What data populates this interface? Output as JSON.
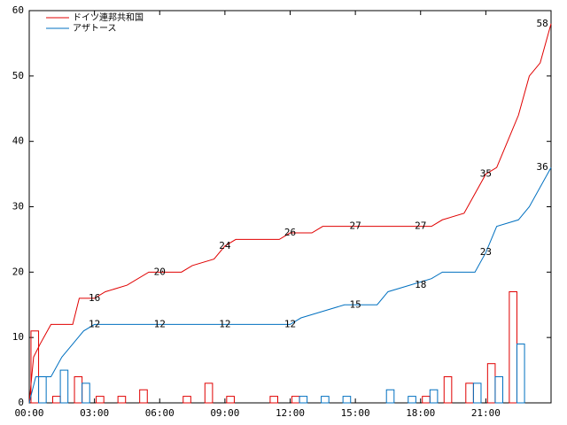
{
  "chart_data": [
    {
      "type": "line",
      "xlim": [
        0,
        24
      ],
      "ylim": [
        0,
        60
      ],
      "yticks": [
        0,
        10,
        20,
        30,
        40,
        50,
        60
      ],
      "xticks": [
        {
          "value": 0,
          "label": "00:00"
        },
        {
          "value": 3,
          "label": "03:00"
        },
        {
          "value": 6,
          "label": "06:00"
        },
        {
          "value": 9,
          "label": "09:00"
        },
        {
          "value": 12,
          "label": "12:00"
        },
        {
          "value": 15,
          "label": "15:00"
        },
        {
          "value": 18,
          "label": "18:00"
        },
        {
          "value": 21,
          "label": "21:00"
        }
      ],
      "series": [
        {
          "name": "ドイツ連邦共和国",
          "color": "#e00000",
          "x": [
            0,
            0.2,
            0.5,
            1,
            2,
            2.3,
            3,
            3.5,
            4.5,
            5.5,
            7,
            7.5,
            8.5,
            9,
            9.5,
            11.5,
            12,
            13,
            13.5,
            18.5,
            19,
            20,
            20.5,
            21,
            21.5,
            22,
            22.5,
            23,
            23.5,
            24
          ],
          "values": [
            0,
            7,
            9,
            12,
            12,
            16,
            16,
            17,
            18,
            20,
            20,
            21,
            22,
            24,
            25,
            25,
            26,
            26,
            27,
            27,
            28,
            29,
            32,
            35,
            36,
            40,
            44,
            50,
            52,
            58
          ],
          "annotations": [
            {
              "x": 3,
              "y": 16
            },
            {
              "x": 6,
              "y": 20
            },
            {
              "x": 9,
              "y": 24
            },
            {
              "x": 12,
              "y": 26
            },
            {
              "x": 15,
              "y": 27
            },
            {
              "x": 18,
              "y": 27
            },
            {
              "x": 21,
              "y": 35
            },
            {
              "x": 23.6,
              "y": 58
            }
          ]
        },
        {
          "name": "アザトース",
          "color": "#0070c0",
          "x": [
            0,
            0.3,
            1,
            1.5,
            2,
            2.5,
            3,
            12,
            12.5,
            13.5,
            14.5,
            16,
            16.5,
            17.5,
            18.5,
            19,
            20.5,
            21,
            21.5,
            22.5,
            23,
            24
          ],
          "values": [
            0,
            4,
            4,
            7,
            9,
            11,
            12,
            12,
            13,
            14,
            15,
            15,
            17,
            18,
            19,
            20,
            20,
            23,
            27,
            28,
            30,
            36
          ],
          "annotations": [
            {
              "x": 3,
              "y": 12
            },
            {
              "x": 6,
              "y": 12
            },
            {
              "x": 9,
              "y": 12
            },
            {
              "x": 12,
              "y": 12
            },
            {
              "x": 15,
              "y": 15
            },
            {
              "x": 18,
              "y": 18
            },
            {
              "x": 21,
              "y": 23
            },
            {
              "x": 23.6,
              "y": 36
            }
          ]
        }
      ]
    },
    {
      "type": "bar",
      "x": [
        0,
        1,
        2,
        3,
        4,
        5,
        6,
        7,
        8,
        9,
        10,
        11,
        12,
        13,
        14,
        15,
        16,
        17,
        18,
        19,
        20,
        21,
        22
      ],
      "series": [
        {
          "color": "#e00000",
          "values": [
            11,
            1,
            4,
            1,
            1,
            2,
            0,
            1,
            3,
            1,
            0,
            1,
            1,
            0,
            0,
            0,
            0,
            0,
            1,
            4,
            3,
            6,
            17
          ]
        },
        {
          "color": "#0070c0",
          "values": [
            4,
            5,
            3,
            0,
            0,
            0,
            0,
            0,
            0,
            0,
            0,
            0,
            1,
            1,
            1,
            0,
            2,
            1,
            2,
            0,
            3,
            4,
            9
          ]
        }
      ]
    }
  ]
}
